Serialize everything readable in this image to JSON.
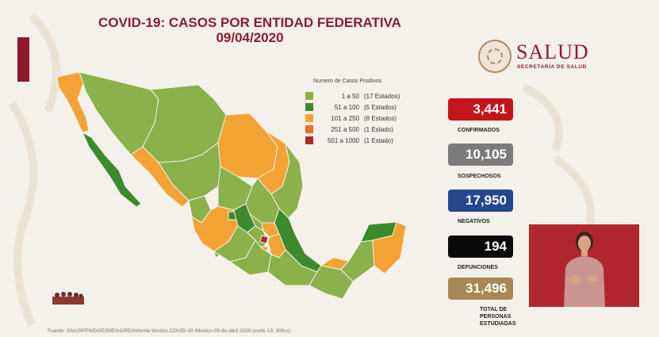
{
  "title": {
    "line1": "COVID-19: CASOS POR ENTIDAD FEDERATIVA",
    "line2": "09/04/2020"
  },
  "logo": {
    "name": "SALUD",
    "subtitle": "SECRETARÍA DE SALUD"
  },
  "legend": {
    "title": "Numero de Casos Positivos",
    "items": [
      {
        "range": "1 a   50",
        "count": "(17 Estados)",
        "color": "#8ab14a"
      },
      {
        "range": "51 a  100",
        "count": "(5 Estados)",
        "color": "#3d8a2c"
      },
      {
        "range": "101 a  250",
        "count": "(8 Estados)",
        "color": "#f3a233"
      },
      {
        "range": "251 a  500",
        "count": "(1 Estado)",
        "color": "#ed6c2a"
      },
      {
        "range": "501 a 1000",
        "count": "(1 Estado)",
        "color": "#b02a24"
      }
    ]
  },
  "stats": [
    {
      "value": "3,441",
      "label": "CONFIRMADOS",
      "color": "#c3161b"
    },
    {
      "value": "10,105",
      "label": "SOSPECHOSOS",
      "color": "#7b7b7b"
    },
    {
      "value": "17,950",
      "label": "NEGATIVOS",
      "color": "#26468e"
    },
    {
      "value": "194",
      "label": "DEFUNCIONES",
      "color": "#0a0a0a"
    },
    {
      "value": "31,496",
      "label": "TOTAL DE PERSONAS ESTUDIADAS",
      "color": "#a88755"
    }
  ],
  "footer": "Fuente: SSA/SPPS/DGE/DIE/InDRE/Informe técnico.COVID-19 /Mexico-09 de abril 2020 (corte 13: 30hrs)",
  "colors": {
    "accent": "#8d1b2c",
    "background": "#f4f0ea"
  }
}
